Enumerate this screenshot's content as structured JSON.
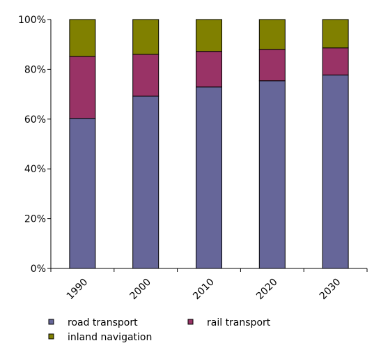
{
  "chart_data": {
    "type": "bar",
    "stacked": true,
    "percent_stacked": true,
    "categories": [
      "1990",
      "2000",
      "2010",
      "2020",
      "2030"
    ],
    "series": [
      {
        "name": "road transport",
        "values": [
          60.3,
          69.2,
          72.9,
          75.4,
          77.7
        ],
        "color": "#666699"
      },
      {
        "name": "rail transport",
        "values": [
          24.9,
          16.8,
          14.3,
          12.6,
          10.9
        ],
        "color": "#993366"
      },
      {
        "name": "inland navigation",
        "values": [
          14.8,
          14.0,
          12.8,
          12.0,
          11.4
        ],
        "color": "#808000"
      }
    ],
    "y_ticks": [
      "0%",
      "20%",
      "40%",
      "60%",
      "80%",
      "100%"
    ],
    "ylim": [
      0,
      100
    ],
    "grid": false,
    "legend_position": "bottom"
  }
}
